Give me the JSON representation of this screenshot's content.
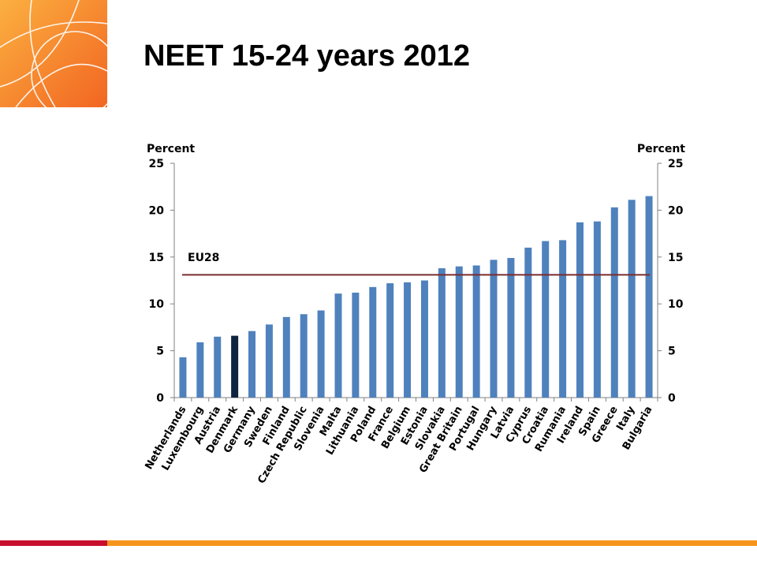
{
  "slide": {
    "title": "NEET 15-24 years 2012"
  },
  "colors": {
    "bar": "#4f81bd",
    "highlight_bar": "#0f243e",
    "reference_line": "#7b2c2c",
    "axis": "#808080",
    "logo_orange": "#f47920",
    "bottom_bar_red": "#c8102e",
    "bottom_bar_orange": "#f7941d"
  },
  "chart_data": {
    "type": "bar",
    "title": "",
    "ylabel_left": "Percent",
    "ylabel_right": "Percent",
    "ylim": [
      0,
      25
    ],
    "yticks": [
      0,
      5,
      10,
      15,
      20,
      25
    ],
    "grid": false,
    "highlight_category": "Denmark",
    "categories": [
      "Netherlands",
      "Luxembourg",
      "Austria",
      "Denmark",
      "Germany",
      "Sweden",
      "Finland",
      "Czech Republic",
      "Slovenia",
      "Malta",
      "Lithuania",
      "Poland",
      "France",
      "Belgium",
      "Estonia",
      "Slovakia",
      "Great Britain",
      "Portugal",
      "Hungary",
      "Latvia",
      "Cyprus",
      "Croatia",
      "Rumania",
      "Ireland",
      "Spain",
      "Greece",
      "Italy",
      "Bulgaria"
    ],
    "values": [
      4.3,
      5.9,
      6.5,
      6.6,
      7.1,
      7.8,
      8.6,
      8.9,
      9.3,
      11.1,
      11.2,
      11.8,
      12.2,
      12.3,
      12.5,
      13.8,
      14.0,
      14.1,
      14.7,
      14.9,
      16.0,
      16.7,
      16.8,
      18.7,
      18.8,
      20.3,
      21.1,
      21.5
    ],
    "reference_line": {
      "label": "EU28",
      "value": 13.1
    }
  }
}
